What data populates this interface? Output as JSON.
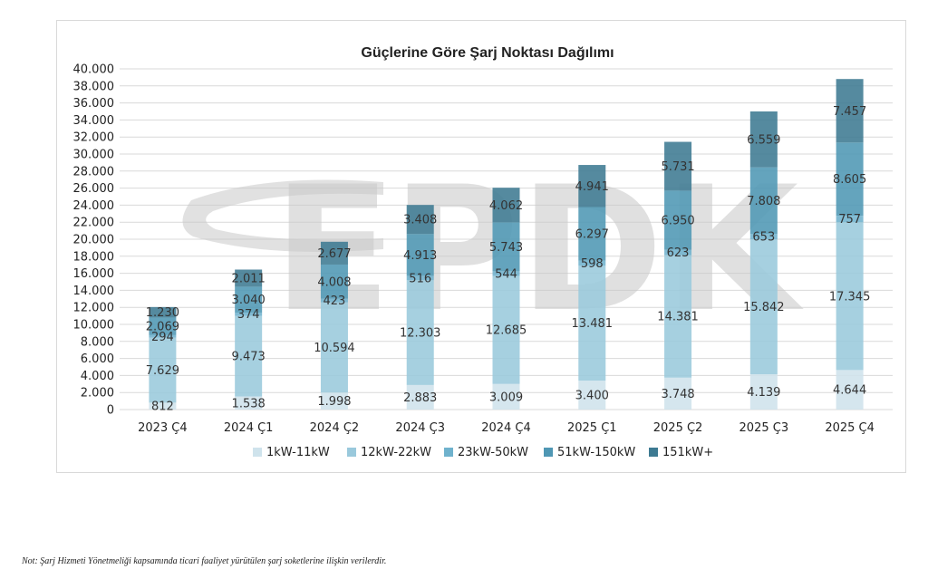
{
  "watermark": {
    "text": "EPDK",
    "color": "#c8c8c8"
  },
  "footnote": "Not: Şarj Hizmeti Yönetmeliği kapsamında ticari faaliyet yürütülen şarj soketlerine ilişkin verilerdir.",
  "chart_data": {
    "type": "bar",
    "stacked": true,
    "title": "Güçlerine Göre Şarj Noktası Dağılımı",
    "xlabel": "",
    "ylabel": "",
    "ylim": [
      0,
      40000
    ],
    "yticks": [
      "0",
      "2.000",
      "4.000",
      "6.000",
      "8.000",
      "10.000",
      "12.000",
      "14.000",
      "16.000",
      "18.000",
      "20.000",
      "22.000",
      "24.000",
      "26.000",
      "28.000",
      "30.000",
      "32.000",
      "34.000",
      "36.000",
      "38.000",
      "40.000"
    ],
    "ytick_values": [
      0,
      2000,
      4000,
      6000,
      8000,
      10000,
      12000,
      14000,
      16000,
      18000,
      20000,
      22000,
      24000,
      26000,
      28000,
      30000,
      32000,
      34000,
      36000,
      38000,
      40000
    ],
    "grid": true,
    "legend_position": "bottom",
    "categories": [
      "2023 Ç4",
      "2024 Ç1",
      "2024 Ç2",
      "2024 Ç3",
      "2024 Ç4",
      "2025 Ç1",
      "2025 Ç2",
      "2025 Ç3",
      "2025 Ç4"
    ],
    "series": [
      {
        "name": "1kW-11kW",
        "color": "#cfe3ec",
        "values": [
          812,
          1538,
          1998,
          2883,
          3009,
          3400,
          3748,
          4139,
          4644
        ],
        "labels": [
          "812",
          "1.538",
          "1.998",
          "2.883",
          "3.009",
          "3.400",
          "3.748",
          "4.139",
          "4.644"
        ]
      },
      {
        "name": "12kW-22kW",
        "color": "#9ac9dc",
        "values": [
          7629,
          9473,
          10594,
          12303,
          12685,
          13481,
          14381,
          15842,
          17345
        ],
        "labels": [
          "7.629",
          "9.473",
          "10.594",
          "12.303",
          "12.685",
          "13.481",
          "14.381",
          "15.842",
          "17.345"
        ]
      },
      {
        "name": "23kW-50kW",
        "color": "#6fb2cd",
        "values": [
          294,
          374,
          423,
          516,
          544,
          598,
          623,
          653,
          757
        ],
        "labels": [
          "294",
          "374",
          "423",
          "516",
          "544",
          "598",
          "623",
          "653",
          "757"
        ]
      },
      {
        "name": "51kW-150kW",
        "color": "#4f97b4",
        "values": [
          2069,
          3040,
          4008,
          4913,
          5743,
          6297,
          6950,
          7808,
          8605
        ],
        "labels": [
          "2.069",
          "3.040",
          "4.008",
          "4.913",
          "5.743",
          "6.297",
          "6.950",
          "7.808",
          "8.605"
        ]
      },
      {
        "name": "151kW+",
        "color": "#3d7a92",
        "values": [
          1230,
          2011,
          2677,
          3408,
          4062,
          4941,
          5731,
          6559,
          7457
        ],
        "labels": [
          "1.230",
          "2.011",
          "2.677",
          "3.408",
          "4.062",
          "4.941",
          "5.731",
          "6.559",
          "7.457"
        ]
      }
    ]
  }
}
